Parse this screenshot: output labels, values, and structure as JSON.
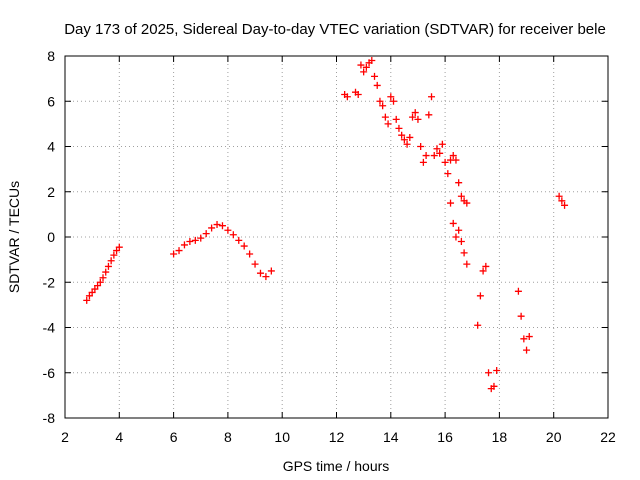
{
  "chart_data": {
    "type": "scatter",
    "title": "Day 173 of 2025, Sidereal Day-to-day VTEC variation (SDTVAR) for receiver bele",
    "xlabel": "GPS time / hours",
    "ylabel": "SDTVAR / TECUs",
    "xlim": [
      2,
      22
    ],
    "ylim": [
      -8,
      8
    ],
    "xticks": [
      2,
      4,
      6,
      8,
      10,
      12,
      14,
      16,
      18,
      20,
      22
    ],
    "yticks": [
      -8,
      -6,
      -4,
      -2,
      0,
      2,
      4,
      6,
      8
    ],
    "grid": true,
    "marker": "+",
    "color": "#ff0000",
    "segments": [
      {
        "x": [
          2.8,
          2.9,
          3.0,
          3.1,
          3.2,
          3.3,
          3.4,
          3.5,
          3.6,
          3.7,
          3.8,
          3.9,
          4.0
        ],
        "y": [
          -2.8,
          -2.6,
          -2.45,
          -2.3,
          -2.15,
          -2.0,
          -1.8,
          -1.55,
          -1.3,
          -1.05,
          -0.8,
          -0.6,
          -0.45
        ]
      },
      {
        "x": [
          6.0,
          6.2,
          6.4,
          6.6,
          6.8,
          7.0,
          7.2,
          7.4,
          7.6,
          7.8,
          8.0,
          8.2,
          8.4,
          8.6,
          8.8,
          9.0,
          9.2,
          9.4,
          9.6
        ],
        "y": [
          -0.75,
          -0.6,
          -0.35,
          -0.2,
          -0.15,
          -0.05,
          0.15,
          0.4,
          0.55,
          0.5,
          0.3,
          0.1,
          -0.15,
          -0.4,
          -0.75,
          -1.2,
          -1.6,
          -1.75,
          -1.5
        ]
      },
      {
        "x": [
          12.3,
          12.4,
          12.7,
          12.8,
          12.9,
          13.0,
          13.1,
          13.2,
          13.3,
          13.4,
          13.5,
          13.6,
          13.7,
          13.8,
          13.9,
          14.0,
          14.1,
          14.2,
          14.3,
          14.4,
          14.5,
          14.6,
          14.7,
          14.8,
          14.9,
          15.0,
          15.1,
          15.2,
          15.3,
          15.4,
          15.5,
          15.6,
          15.7,
          15.8,
          15.9,
          16.0,
          16.1,
          16.2,
          16.3,
          16.4,
          16.5,
          16.6,
          16.7,
          16.8
        ],
        "y": [
          6.3,
          6.2,
          6.4,
          6.3,
          7.6,
          7.3,
          7.5,
          7.7,
          7.8,
          7.1,
          6.7,
          6.0,
          5.8,
          5.3,
          5.0,
          6.2,
          6.0,
          5.2,
          4.8,
          4.5,
          4.3,
          4.1,
          4.4,
          5.3,
          5.5,
          5.2,
          4.0,
          3.3,
          3.6,
          5.4,
          6.2,
          3.6,
          3.9,
          3.7,
          4.1,
          3.3,
          2.8,
          3.4,
          3.6,
          3.4,
          2.4,
          1.8,
          1.6,
          1.5
        ]
      },
      {
        "x": [
          16.2,
          16.3,
          16.4,
          16.5,
          16.6,
          16.7,
          16.8
        ],
        "y": [
          1.5,
          0.6,
          0.0,
          0.3,
          -0.2,
          -0.7,
          -1.2
        ]
      },
      {
        "x": [
          17.2,
          17.3,
          17.4,
          17.5,
          17.6,
          17.7,
          17.8,
          17.9
        ],
        "y": [
          -3.9,
          -2.6,
          -1.5,
          -1.3,
          -6.0,
          -6.7,
          -6.6,
          -5.9
        ]
      },
      {
        "x": [
          18.7,
          18.8,
          18.9,
          19.0,
          19.1
        ],
        "y": [
          -2.4,
          -3.5,
          -4.5,
          -5.0,
          -4.4
        ]
      },
      {
        "x": [
          20.2,
          20.3,
          20.4
        ],
        "y": [
          1.8,
          1.6,
          1.4
        ]
      }
    ]
  }
}
